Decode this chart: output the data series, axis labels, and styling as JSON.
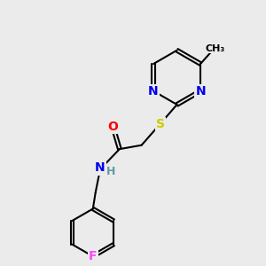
{
  "bg_color": "#ebebeb",
  "bond_color": "#000000",
  "atom_colors": {
    "N": "#0000ee",
    "O": "#ff0000",
    "S": "#cccc00",
    "F": "#ff44ff",
    "C": "#000000",
    "H": "#5f9ea0"
  },
  "font_size": 9,
  "bond_width": 1.5,
  "figsize": [
    3.0,
    3.0
  ],
  "dpi": 100
}
